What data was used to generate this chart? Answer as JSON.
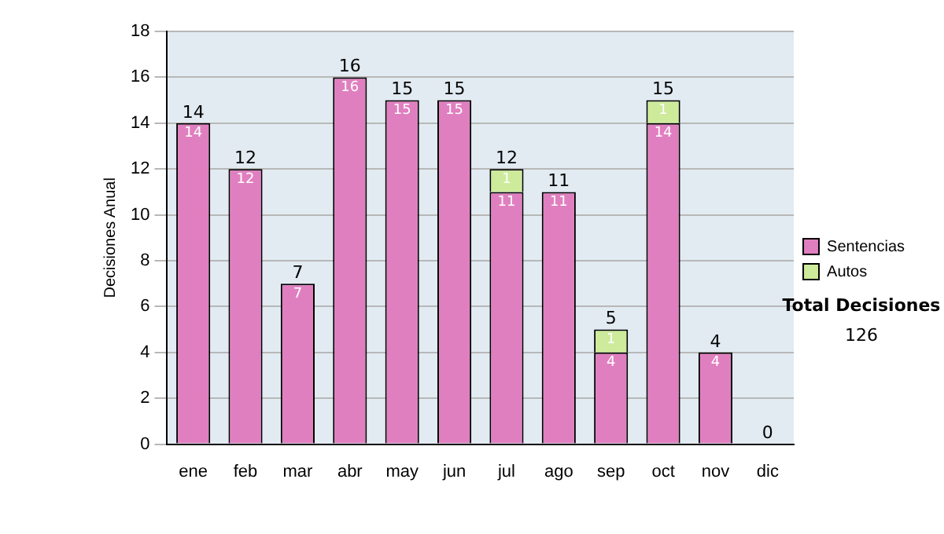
{
  "chart_data": {
    "type": "bar",
    "stacked": true,
    "ylabel": "Decisiones Anual",
    "categories": [
      "ene",
      "feb",
      "mar",
      "abr",
      "may",
      "jun",
      "jul",
      "ago",
      "sep",
      "oct",
      "nov",
      "dic"
    ],
    "series": [
      {
        "name": "Sentencias",
        "color": "#e07fc0",
        "values": [
          14,
          12,
          7,
          16,
          15,
          15,
          11,
          11,
          4,
          14,
          4,
          0
        ],
        "value_labels": [
          "14",
          "12",
          "7",
          "16",
          "15",
          "15",
          "11",
          "11",
          "4",
          "14",
          "4",
          null
        ]
      },
      {
        "name": "Autos",
        "color": "#cdeb9a",
        "values": [
          0,
          0,
          0,
          0,
          0,
          0,
          1,
          0,
          1,
          1,
          0,
          0
        ],
        "value_labels": [
          null,
          null,
          null,
          null,
          null,
          null,
          "1",
          null,
          "1",
          "1",
          null,
          null
        ]
      }
    ],
    "totals": [
      "14",
      "12",
      "7",
      "16",
      "15",
      "15",
      "12",
      "11",
      "5",
      "15",
      "4",
      "0"
    ],
    "ylim": [
      0,
      18
    ],
    "yticks": [
      0,
      2,
      4,
      6,
      8,
      10,
      12,
      14,
      16,
      18
    ],
    "grid": "y",
    "legend": "right",
    "annotations": [
      "Total Decisiones",
      "126"
    ]
  }
}
